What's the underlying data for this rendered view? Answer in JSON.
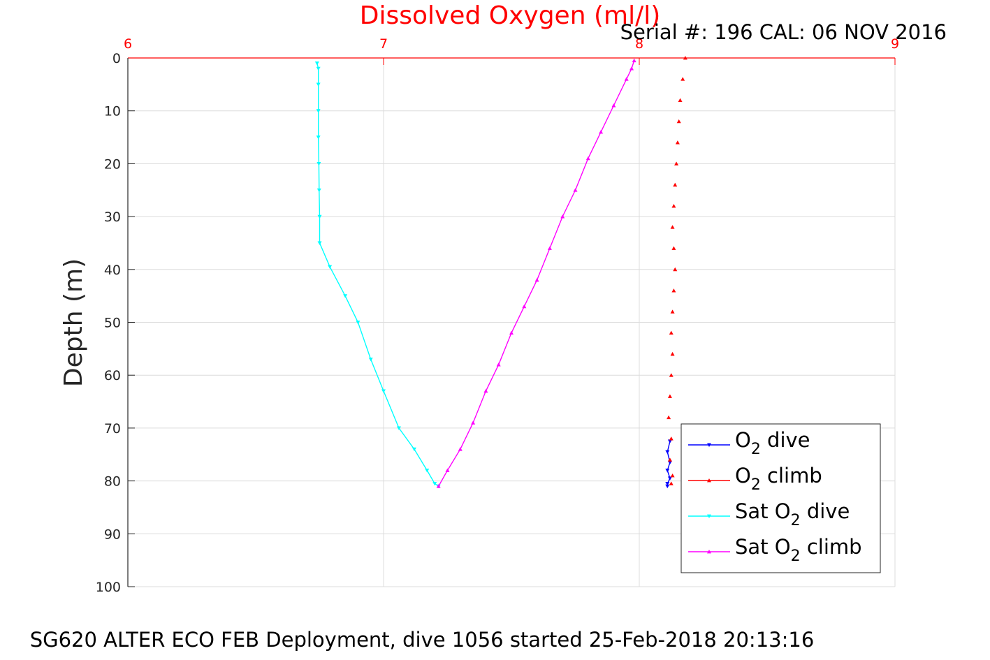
{
  "chart_data": {
    "type": "line",
    "title": "Dissolved Oxygen (ml/l)",
    "subtitle": "Serial #: 196  CAL: 06 NOV 2016",
    "caption": "SG620 ALTER ECO FEB Deployment, dive 1056 started 25-Feb-2018 20:13:16",
    "xlabel": "",
    "ylabel": "Depth (m)",
    "xlim": [
      6,
      9
    ],
    "ylim": [
      0,
      100
    ],
    "y_reversed": true,
    "x_axis_position": "top",
    "x_ticks": [
      "6",
      "7",
      "8",
      "9"
    ],
    "y_ticks": [
      "0",
      "10",
      "20",
      "30",
      "40",
      "50",
      "60",
      "70",
      "80",
      "90",
      "100"
    ],
    "grid": true,
    "legend_position": "bottom-right",
    "colors": {
      "title": "#ff0000",
      "x_ticks": "#ff0000",
      "axis": "#262626",
      "grid": "#dcdcdc"
    },
    "series": [
      {
        "legend": {
          "prefix": "O",
          "sub": "2",
          "suffix": " dive"
        },
        "color": "#0000ff",
        "marker": "triangle-down",
        "x": [
          8.12,
          8.11,
          8.12,
          8.11,
          8.12,
          8.11,
          8.11
        ],
        "y": [
          72.5,
          74.5,
          76.5,
          78,
          79.5,
          80.5,
          81
        ]
      },
      {
        "legend": {
          "prefix": "O",
          "sub": "2",
          "suffix": " climb"
        },
        "color": "#ff0000",
        "marker": "triangle-up",
        "x": [
          8.18,
          8.17,
          8.16,
          8.155,
          8.15,
          8.145,
          8.14,
          8.135,
          8.13,
          8.135,
          8.14,
          8.135,
          8.13,
          8.125,
          8.13,
          8.125,
          8.12,
          8.115,
          8.125,
          8.12,
          8.13,
          8.125
        ],
        "y": [
          0,
          4,
          8,
          12,
          16,
          20,
          24,
          28,
          32,
          36,
          40,
          44,
          48,
          52,
          56,
          60,
          64,
          68,
          72,
          76,
          79,
          80.5
        ]
      },
      {
        "legend": {
          "prefix": "Sat O",
          "sub": "2",
          "suffix": " dive"
        },
        "color": "#00ffff",
        "marker": "triangle-down",
        "x": [
          6.74,
          6.745,
          6.745,
          6.745,
          6.745,
          6.747,
          6.748,
          6.75,
          6.75,
          6.79,
          6.85,
          6.9,
          6.95,
          7.0,
          7.06,
          7.12,
          7.17,
          7.2,
          7.215
        ],
        "y": [
          1,
          2,
          5,
          10,
          15,
          20,
          25,
          30,
          35,
          39.5,
          45,
          50,
          57,
          63,
          70,
          74,
          78,
          80.5,
          81
        ]
      },
      {
        "legend": {
          "prefix": "Sat O",
          "sub": "2",
          "suffix": " climb"
        },
        "color": "#ff00ff",
        "marker": "triangle-up",
        "x": [
          7.215,
          7.25,
          7.3,
          7.35,
          7.4,
          7.45,
          7.5,
          7.55,
          7.6,
          7.65,
          7.7,
          7.75,
          7.8,
          7.85,
          7.9,
          7.95,
          7.97,
          7.98
        ],
        "y": [
          81,
          78,
          74,
          69,
          63,
          58,
          52,
          47,
          42,
          36,
          30,
          25,
          19,
          14,
          9,
          4,
          2,
          0.5
        ]
      }
    ]
  }
}
